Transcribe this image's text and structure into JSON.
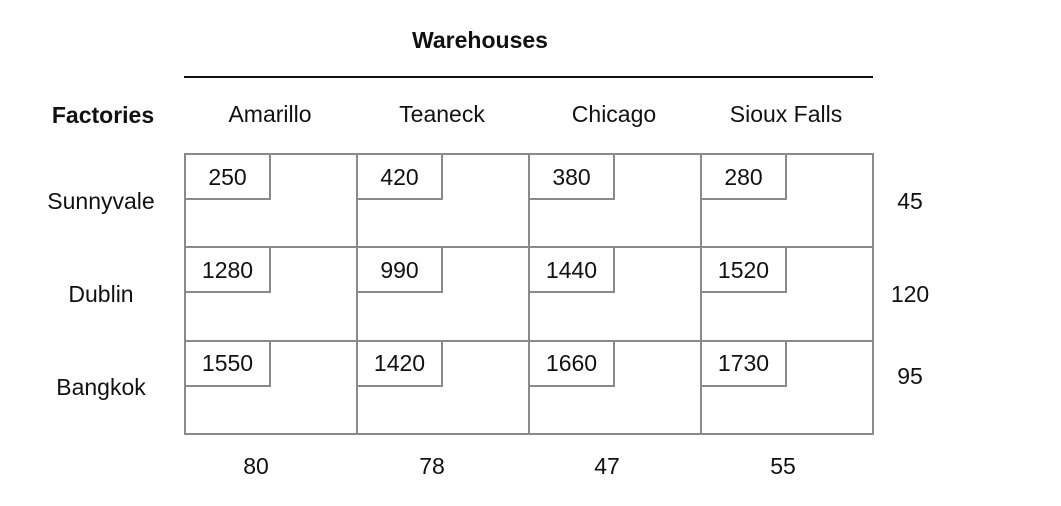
{
  "title": "Warehouses",
  "row_header": "Factories",
  "warehouses": [
    "Amarillo",
    "Teaneck",
    "Chicago",
    "Sioux Falls"
  ],
  "factories": [
    {
      "name": "Sunnyvale",
      "costs": [
        "250",
        "420",
        "380",
        "280"
      ],
      "supply": "45"
    },
    {
      "name": "Dublin",
      "costs": [
        "1280",
        "990",
        "1440",
        "1520"
      ],
      "supply": "120"
    },
    {
      "name": "Bangkok",
      "costs": [
        "1550",
        "1420",
        "1660",
        "1730"
      ],
      "supply": "95"
    }
  ],
  "demands": [
    "80",
    "78",
    "47",
    "55"
  ],
  "colors": {
    "text": "#111111",
    "grid": "#8a8a8a",
    "background": "#ffffff"
  }
}
